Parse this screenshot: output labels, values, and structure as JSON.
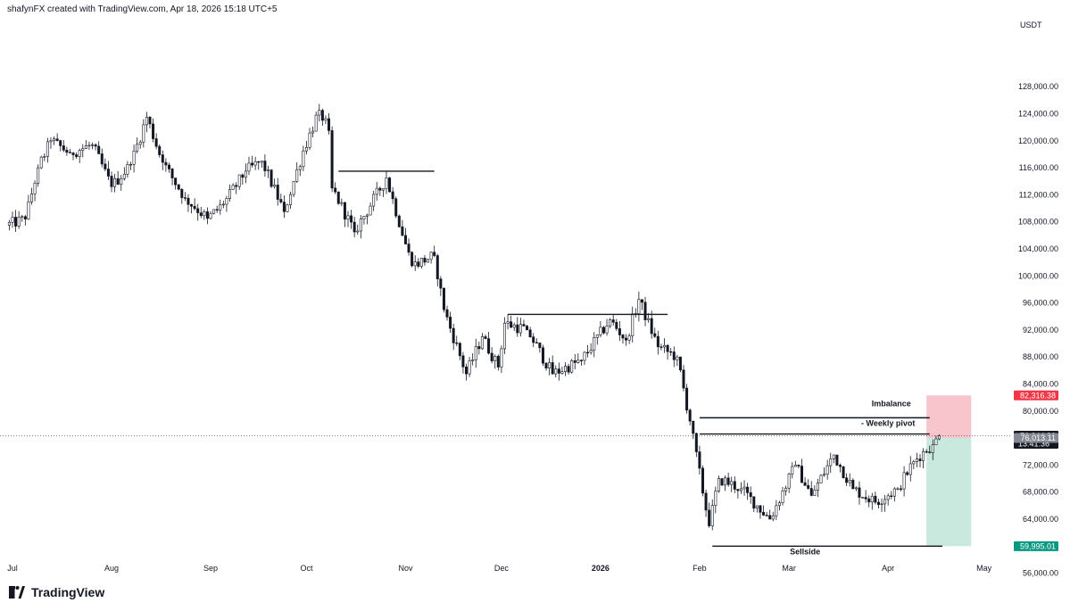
{
  "header": {
    "text": "shafynFX created with TradingView.com, Apr 18, 2026 15:18 UTC+5"
  },
  "logo": {
    "text": "TradingView"
  },
  "chart_data": {
    "type": "candlestick",
    "currency_label": "USDT",
    "y_ticks": [
      56000,
      60000,
      64000,
      68000,
      72000,
      76000,
      80000,
      84000,
      88000,
      92000,
      96000,
      100000,
      104000,
      108000,
      112000,
      116000,
      120000,
      124000,
      128000
    ],
    "y_tick_labels": [
      "56,000.00",
      "60,000.00",
      "64,000.00",
      "68,000.00",
      "72,000.00",
      "76,000.00",
      "80,000.00",
      "84,000.00",
      "88,000.00",
      "92,000.00",
      "96,000.00",
      "100,000.00",
      "104,000.00",
      "108,000.00",
      "112,000.00",
      "116,000.00",
      "120,000.00",
      "124,000.00",
      "128,000.00"
    ],
    "x_labels": [
      {
        "label": "Jul",
        "date": "2025-07-01"
      },
      {
        "label": "Aug",
        "date": "2025-08-01"
      },
      {
        "label": "Sep",
        "date": "2025-09-01"
      },
      {
        "label": "Oct",
        "date": "2025-10-01"
      },
      {
        "label": "Nov",
        "date": "2025-11-01"
      },
      {
        "label": "Dec",
        "date": "2025-12-01"
      },
      {
        "label": "2026",
        "date": "2026-01-01",
        "bold": true
      },
      {
        "label": "Feb",
        "date": "2026-02-01"
      },
      {
        "label": "Mar",
        "date": "2026-03-01"
      },
      {
        "label": "Apr",
        "date": "2026-04-01"
      },
      {
        "label": "May",
        "date": "2026-05-01"
      }
    ],
    "start_date": "2025-06-30",
    "key_closes": [
      {
        "date": "2025-06-30",
        "close": 107500
      },
      {
        "date": "2025-07-06",
        "close": 108400
      },
      {
        "date": "2025-07-10",
        "close": 116000
      },
      {
        "date": "2025-07-14",
        "close": 120000
      },
      {
        "date": "2025-07-20",
        "close": 118200
      },
      {
        "date": "2025-07-27",
        "close": 119400
      },
      {
        "date": "2025-08-02",
        "close": 113200
      },
      {
        "date": "2025-08-08",
        "close": 116500
      },
      {
        "date": "2025-08-13",
        "close": 123500
      },
      {
        "date": "2025-08-18",
        "close": 116800
      },
      {
        "date": "2025-08-25",
        "close": 111500
      },
      {
        "date": "2025-09-01",
        "close": 108500
      },
      {
        "date": "2025-09-06",
        "close": 110600
      },
      {
        "date": "2025-09-13",
        "close": 115500
      },
      {
        "date": "2025-09-18",
        "close": 117000
      },
      {
        "date": "2025-09-25",
        "close": 109500
      },
      {
        "date": "2025-10-01",
        "close": 118500
      },
      {
        "date": "2025-10-06",
        "close": 124500
      },
      {
        "date": "2025-10-09",
        "close": 121500
      },
      {
        "date": "2025-10-10",
        "close": 113000
      },
      {
        "date": "2025-10-17",
        "close": 106500
      },
      {
        "date": "2025-10-27",
        "close": 114500
      },
      {
        "date": "2025-11-04",
        "close": 101500
      },
      {
        "date": "2025-11-11",
        "close": 103000
      },
      {
        "date": "2025-11-14",
        "close": 95000
      },
      {
        "date": "2025-11-21",
        "close": 85500
      },
      {
        "date": "2025-11-26",
        "close": 91000
      },
      {
        "date": "2025-12-01",
        "close": 86500
      },
      {
        "date": "2025-12-03",
        "close": 93000
      },
      {
        "date": "2025-12-10",
        "close": 92000
      },
      {
        "date": "2025-12-18",
        "close": 85500
      },
      {
        "date": "2025-12-27",
        "close": 87500
      },
      {
        "date": "2026-01-05",
        "close": 93500
      },
      {
        "date": "2026-01-10",
        "close": 90500
      },
      {
        "date": "2026-01-14",
        "close": 96500
      },
      {
        "date": "2026-01-20",
        "close": 89500
      },
      {
        "date": "2026-01-26",
        "close": 88000
      },
      {
        "date": "2026-01-30",
        "close": 78500
      },
      {
        "date": "2026-02-05",
        "close": 63000
      },
      {
        "date": "2026-02-08",
        "close": 70000
      },
      {
        "date": "2026-02-15",
        "close": 68500
      },
      {
        "date": "2026-02-24",
        "close": 64000
      },
      {
        "date": "2026-03-04",
        "close": 72000
      },
      {
        "date": "2026-03-09",
        "close": 67500
      },
      {
        "date": "2026-03-16",
        "close": 73500
      },
      {
        "date": "2026-03-22",
        "close": 68500
      },
      {
        "date": "2026-03-29",
        "close": 66500
      },
      {
        "date": "2026-04-05",
        "close": 68500
      },
      {
        "date": "2026-04-10",
        "close": 72500
      },
      {
        "date": "2026-04-13",
        "close": 74000
      },
      {
        "date": "2026-04-16",
        "close": 75000
      },
      {
        "date": "2026-04-18",
        "close": 76344.8
      }
    ],
    "horizontal_levels": [
      {
        "name": "oct-high",
        "price": 115500,
        "from": "2025-10-11",
        "to": "2025-11-10"
      },
      {
        "name": "dec-range-high",
        "price": 94300,
        "from": "2025-12-03",
        "to": "2026-01-22"
      },
      {
        "name": "imbalance-line",
        "price": 79000,
        "from": "2026-02-01",
        "to": "2026-04-14"
      },
      {
        "name": "weekly-pivot",
        "price": 76600,
        "from": "2026-02-01",
        "to": "2026-04-14"
      },
      {
        "name": "sellside",
        "price": 59995.01,
        "from": "2026-02-05",
        "to": "2026-04-18"
      }
    ],
    "annotations": [
      {
        "text": "Imbalance",
        "price": 80700,
        "date": "2026-04-02"
      },
      {
        "text": "- Weekly pivot",
        "price": 77800,
        "date": "2026-04-01"
      },
      {
        "text": "Sellside",
        "price": 58800,
        "date": "2026-03-06"
      }
    ],
    "position_tool": {
      "from": "2026-04-13",
      "to": "2026-04-27",
      "stop": 82316.38,
      "entry": 76013.11,
      "target": 59995.01,
      "risk_color": "#f7c5cb",
      "reward_color": "#c9e9df"
    },
    "price_labels": [
      {
        "value": "82,316.38",
        "price": 82316.38,
        "bg": "#f23645",
        "fg": "#ffffff"
      },
      {
        "value": "76,344.80",
        "price": 76344.8,
        "bg": "#131722",
        "fg": "#ffffff",
        "sub": "13:41:36"
      },
      {
        "value": "76,013.11",
        "price": 76013.11,
        "bg": "#868993",
        "fg": "#ffffff"
      },
      {
        "value": "59,995.01",
        "price": 59995.01,
        "bg": "#089981",
        "fg": "#ffffff"
      }
    ],
    "current_price": 76344.8,
    "grid": false,
    "colors": {
      "candle": "#131722",
      "up_fill": "#ffffff"
    }
  }
}
